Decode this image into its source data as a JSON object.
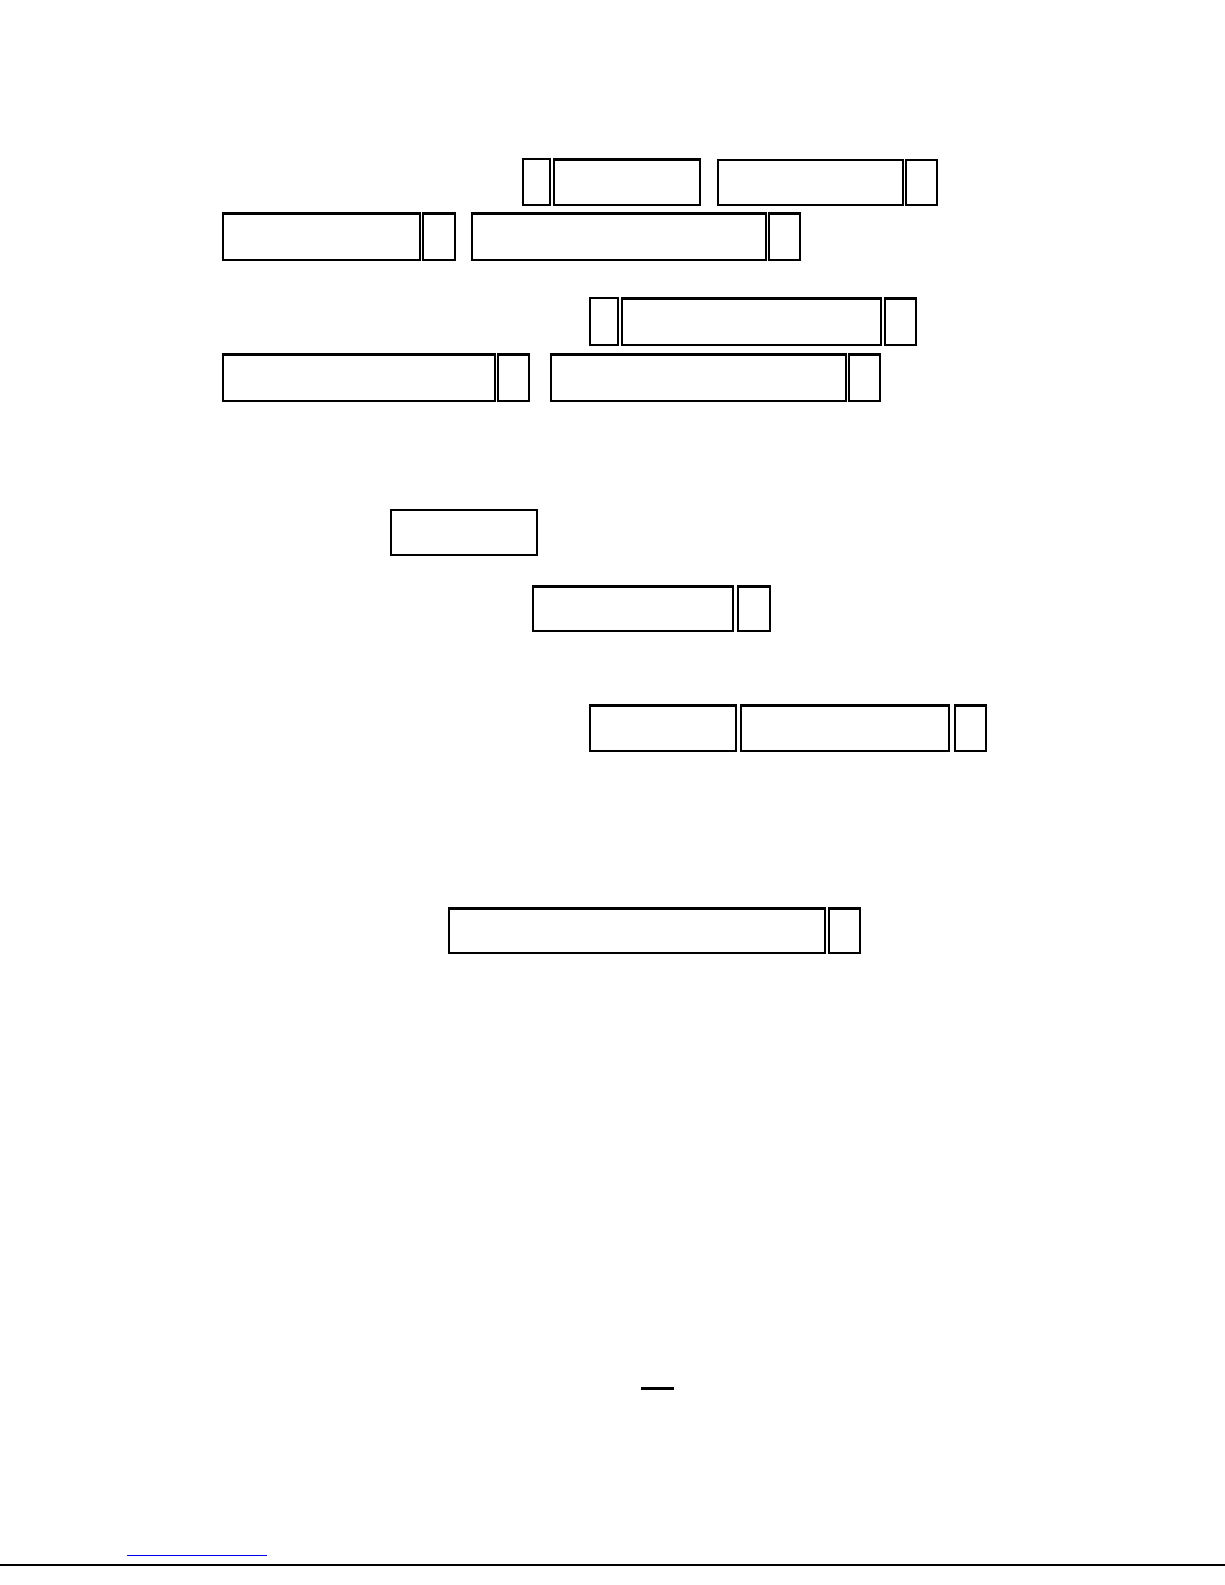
{
  "colors": {
    "border": "#000000",
    "link": "#0000ee"
  },
  "form": {
    "fields": []
  }
}
